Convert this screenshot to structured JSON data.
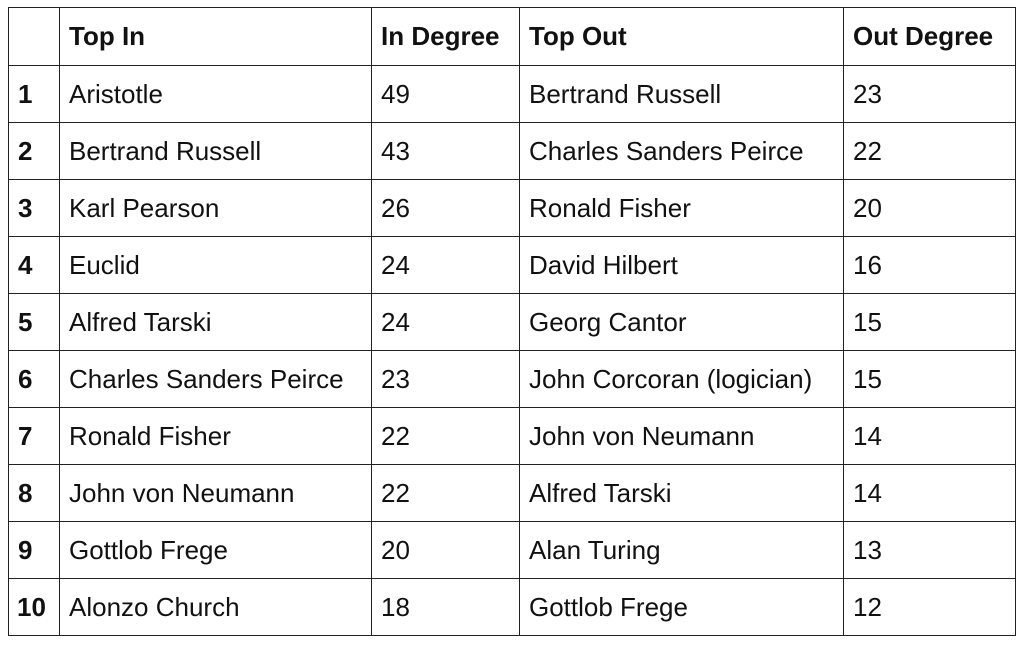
{
  "table": {
    "headers": [
      "",
      "Top In",
      "In Degree",
      "Top Out",
      "Out Degree"
    ],
    "rows": [
      [
        "1",
        "Aristotle",
        "49",
        "Bertrand Russell",
        "23"
      ],
      [
        "2",
        "Bertrand Russell",
        "43",
        "Charles Sanders Peirce",
        "22"
      ],
      [
        "3",
        "Karl Pearson",
        "26",
        "Ronald Fisher",
        "20"
      ],
      [
        "4",
        "Euclid",
        "24",
        "David Hilbert",
        "16"
      ],
      [
        "5",
        "Alfred Tarski",
        "24",
        "Georg Cantor",
        "15"
      ],
      [
        "6",
        "Charles Sanders Peirce",
        "23",
        "John Corcoran (logician)",
        "15"
      ],
      [
        "7",
        "Ronald Fisher",
        "22",
        "John von Neumann",
        "14"
      ],
      [
        "8",
        "John von Neumann",
        "22",
        "Alfred Tarski",
        "14"
      ],
      [
        "9",
        "Gottlob Frege",
        "20",
        "Alan Turing",
        "13"
      ],
      [
        "10",
        "Alonzo Church",
        "18",
        "Gottlob Frege",
        "12"
      ]
    ]
  }
}
